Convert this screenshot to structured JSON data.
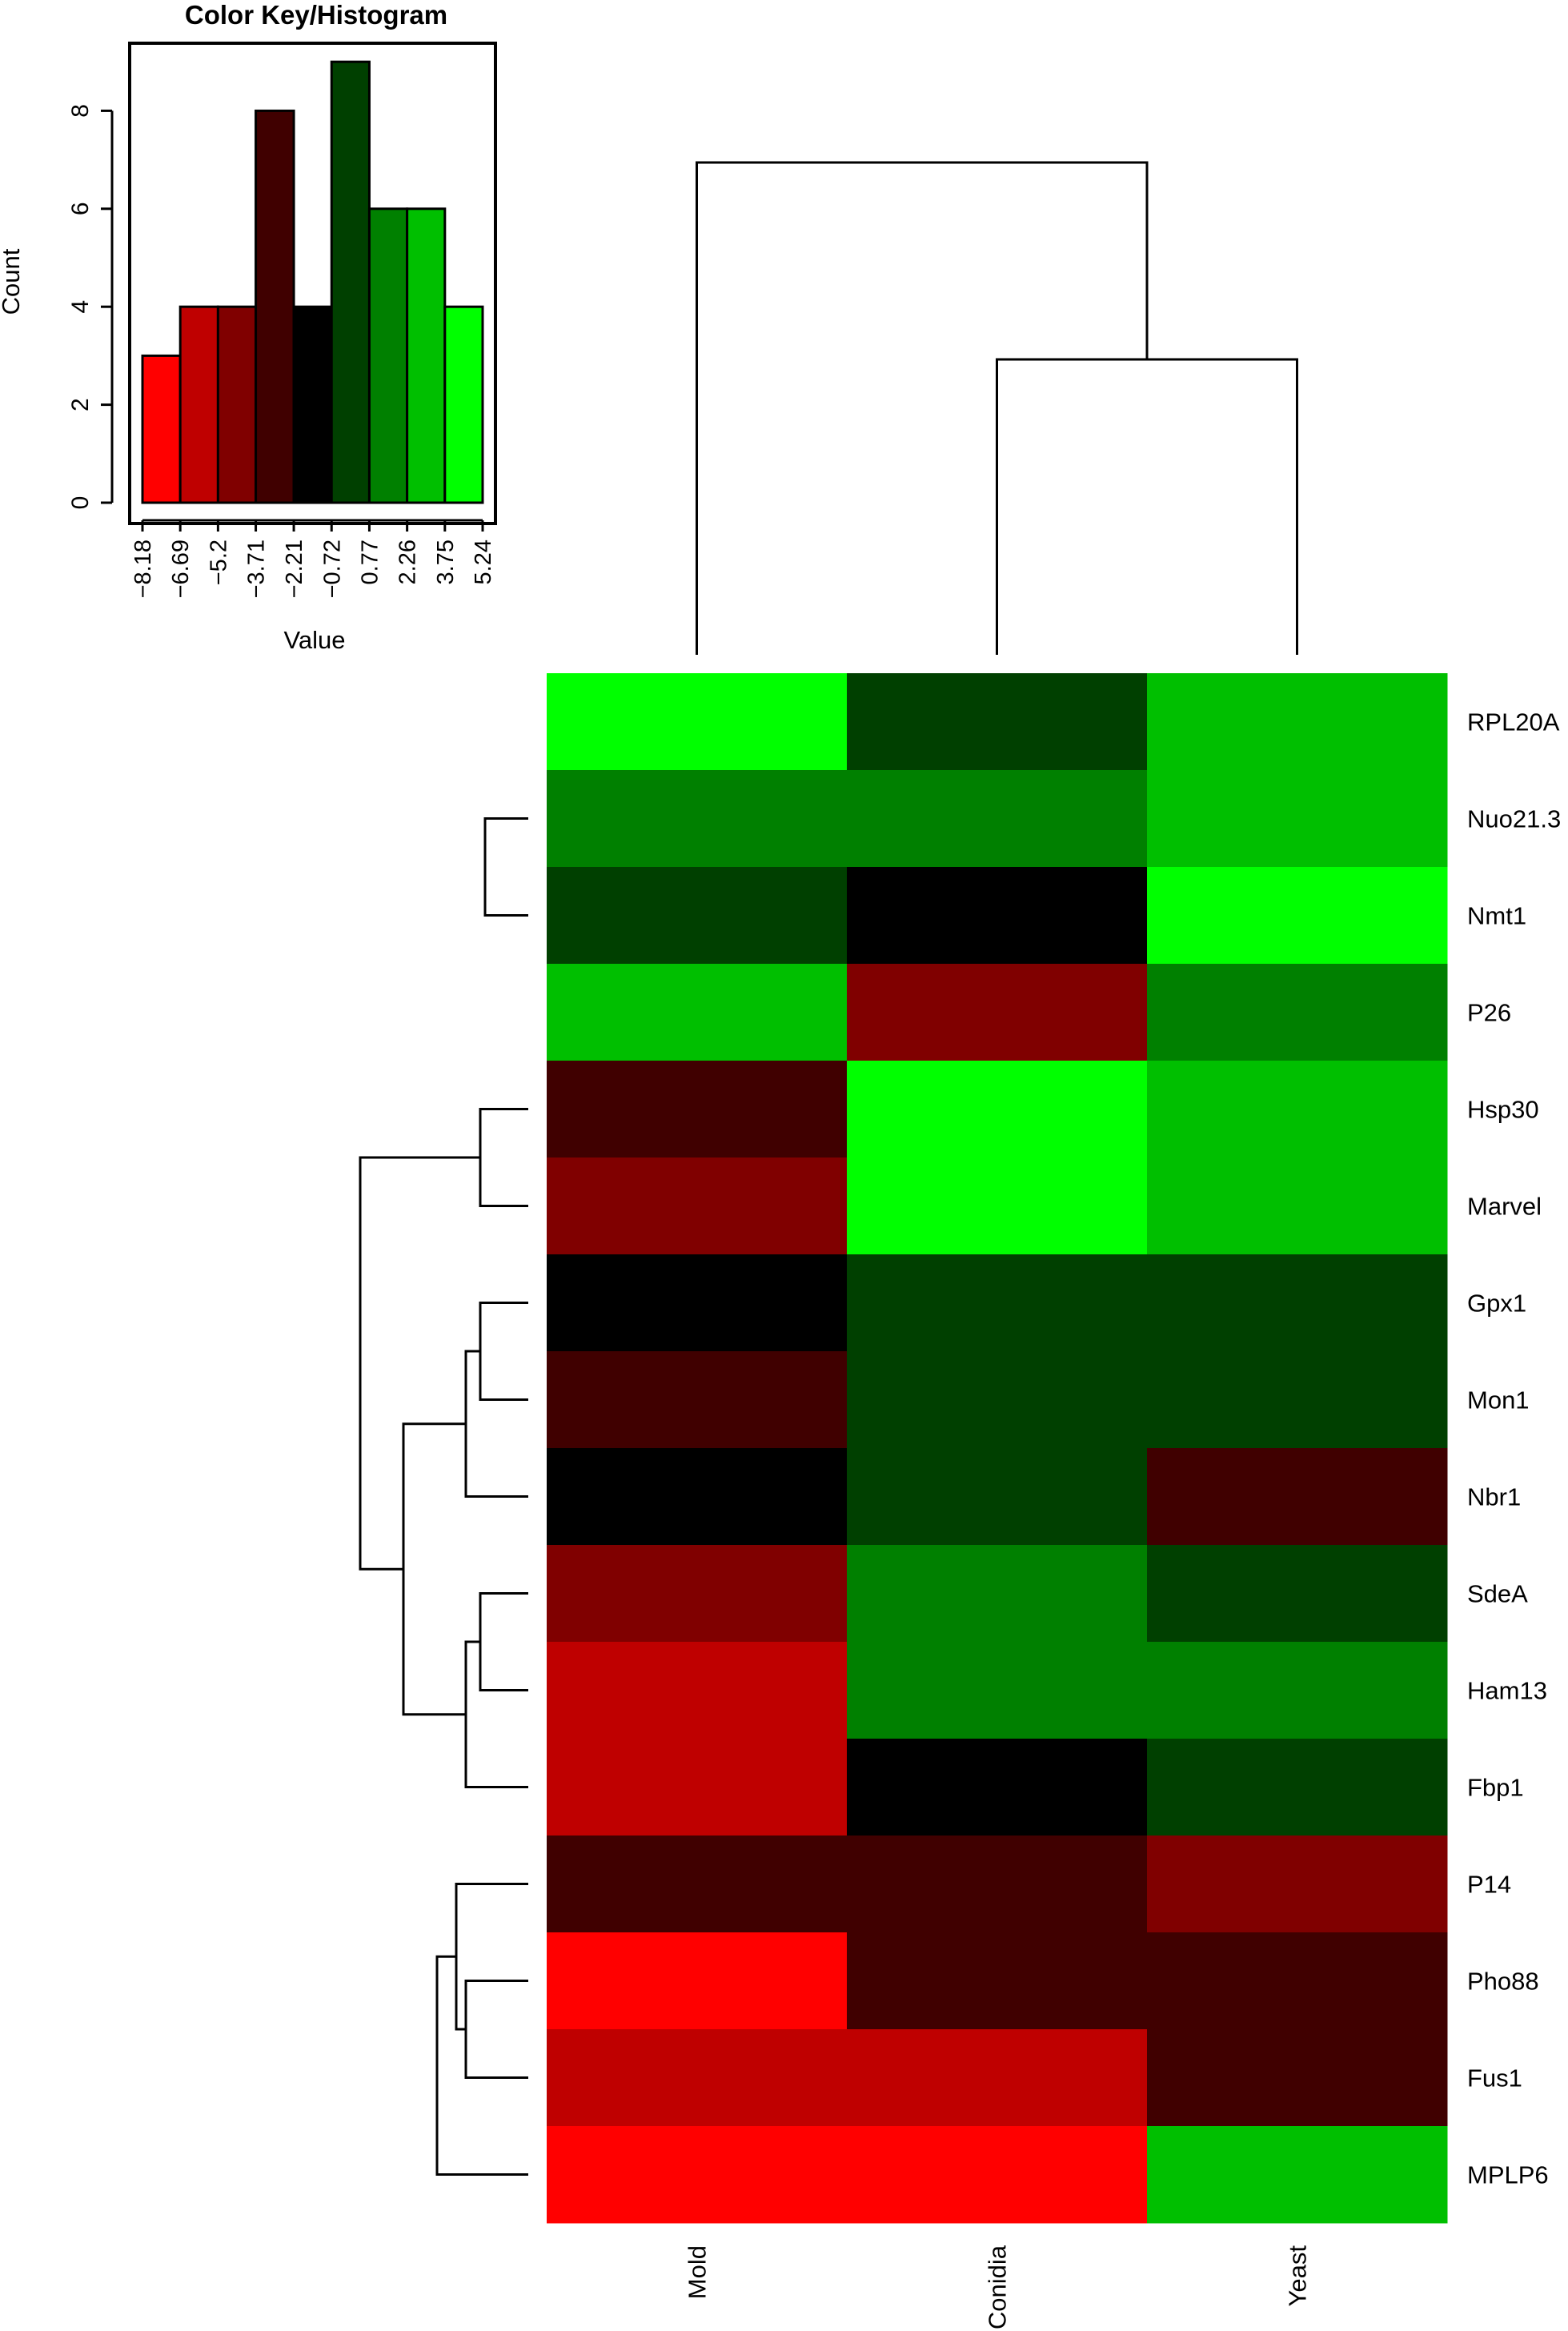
{
  "chart_data": [
    {
      "type": "bar",
      "title": "Color Key/Histogram",
      "xlabel": "Value",
      "ylabel": "Count",
      "bin_edges": [
        -8.18,
        -6.69,
        -5.2,
        -3.71,
        -2.21,
        -0.72,
        0.77,
        2.26,
        3.75,
        5.24
      ],
      "categories": [
        "-8.18 to -6.69",
        "-6.69 to -5.2",
        "-5.2 to -3.71",
        "-3.71 to -2.21",
        "-2.21 to -0.72",
        "-0.72 to 0.77",
        "0.77 to 2.26",
        "2.26 to 3.75",
        "3.75 to 5.24"
      ],
      "values": [
        3,
        4,
        4,
        8,
        4,
        9,
        6,
        6,
        4
      ],
      "bar_colors": [
        "#FF0000",
        "#BF0000",
        "#800000",
        "#400000",
        "#000000",
        "#004000",
        "#008000",
        "#00BF00",
        "#00FF00"
      ],
      "xtick_labels": [
        "−8.18",
        "−6.69",
        "−5.2",
        "−3.71",
        "−2.21",
        "−0.72",
        "0.77",
        "2.26",
        "3.75",
        "5.24"
      ],
      "ytick_labels": [
        "0",
        "2",
        "4",
        "6",
        "8"
      ],
      "yticks": [
        0,
        2,
        4,
        6,
        8
      ],
      "ylim": [
        0,
        9.4
      ],
      "xlim": [
        -8.18,
        5.24
      ]
    },
    {
      "type": "heatmap",
      "columns": [
        "Mold",
        "Conidia",
        "Yeast"
      ],
      "rows": [
        "RPL20A",
        "Nuo21.3",
        "Nmt1",
        "P26",
        "Hsp30",
        "Marvel",
        "Gpx1",
        "Mon1",
        "Nbr1",
        "SdeA",
        "Ham13",
        "Fbp1",
        "P14",
        "Pho88",
        "Fus1",
        "MPLP6"
      ],
      "color_scale": {
        "min": -8.18,
        "max": 5.24,
        "bin_edges": [
          -8.18,
          -6.69,
          -5.2,
          -3.71,
          -2.21,
          -0.72,
          0.77,
          2.26,
          3.75,
          5.24
        ],
        "colors": [
          "#FF0000",
          "#BF0000",
          "#800000",
          "#400000",
          "#000000",
          "#004000",
          "#008000",
          "#00BF00",
          "#00FF00"
        ]
      },
      "values": [
        [
          4.5,
          0.0,
          3.0
        ],
        [
          1.5,
          1.5,
          3.0
        ],
        [
          0.0,
          -1.5,
          4.5
        ],
        [
          3.0,
          -4.5,
          1.5
        ],
        [
          -3.0,
          4.5,
          3.0
        ],
        [
          -4.5,
          4.5,
          3.0
        ],
        [
          -1.5,
          0.0,
          0.0
        ],
        [
          -3.0,
          0.0,
          0.0
        ],
        [
          -1.5,
          0.0,
          -3.0
        ],
        [
          -4.5,
          1.5,
          0.0
        ],
        [
          -6.0,
          1.5,
          1.5
        ],
        [
          -6.0,
          -1.5,
          0.0
        ],
        [
          -3.0,
          -3.0,
          -4.5
        ],
        [
          -7.5,
          -3.0,
          -3.0
        ],
        [
          -6.0,
          -6.0,
          -3.0
        ],
        [
          -7.5,
          -7.5,
          3.0
        ]
      ],
      "column_dendrogram": {
        "merges": [
          {
            "left": "Conidia",
            "right": "Yeast",
            "height": 3.0
          },
          {
            "left": "Mold",
            "right": "Conidia+Yeast",
            "height": 5.0
          }
        ]
      },
      "row_dendrogram": {
        "merges": [
          {
            "left": "RPL20A",
            "right": "Nuo21.3+Nmt1",
            "height": 1.1
          },
          {
            "left": "Nuo21.3",
            "right": "Nmt1",
            "height": 0.9
          },
          {
            "left": "RPL20A..Nmt1",
            "right": "P26",
            "height": 1.8
          },
          {
            "left": "Hsp30",
            "right": "Marvel",
            "height": 1.0
          },
          {
            "left": "Gpx1",
            "right": "Mon1",
            "height": 1.0
          },
          {
            "left": "Gpx1+Mon1",
            "right": "Nbr1",
            "height": 1.3
          },
          {
            "left": "SdeA",
            "right": "Ham13",
            "height": 1.0
          },
          {
            "left": "SdeA+Ham13",
            "right": "Fbp1",
            "height": 1.3
          },
          {
            "left": "Gpx1..Nbr1",
            "right": "SdeA..Fbp1",
            "height": 2.6
          },
          {
            "left": "Hsp30+Marvel",
            "right": "Gpx1..Fbp1",
            "height": 3.5
          },
          {
            "left": "RPL20A..P26",
            "right": "Hsp30..Fbp1",
            "height": 5.5
          },
          {
            "left": "Pho88",
            "right": "Fus1",
            "height": 1.3
          },
          {
            "left": "P14",
            "right": "Pho88+Fus1",
            "height": 1.5
          },
          {
            "left": "P14..Fus1",
            "right": "MPLP6",
            "height": 1.9
          },
          {
            "left": "RPL20A..Fbp1",
            "right": "P14..MPLP6",
            "height": 6.3
          }
        ]
      }
    }
  ]
}
